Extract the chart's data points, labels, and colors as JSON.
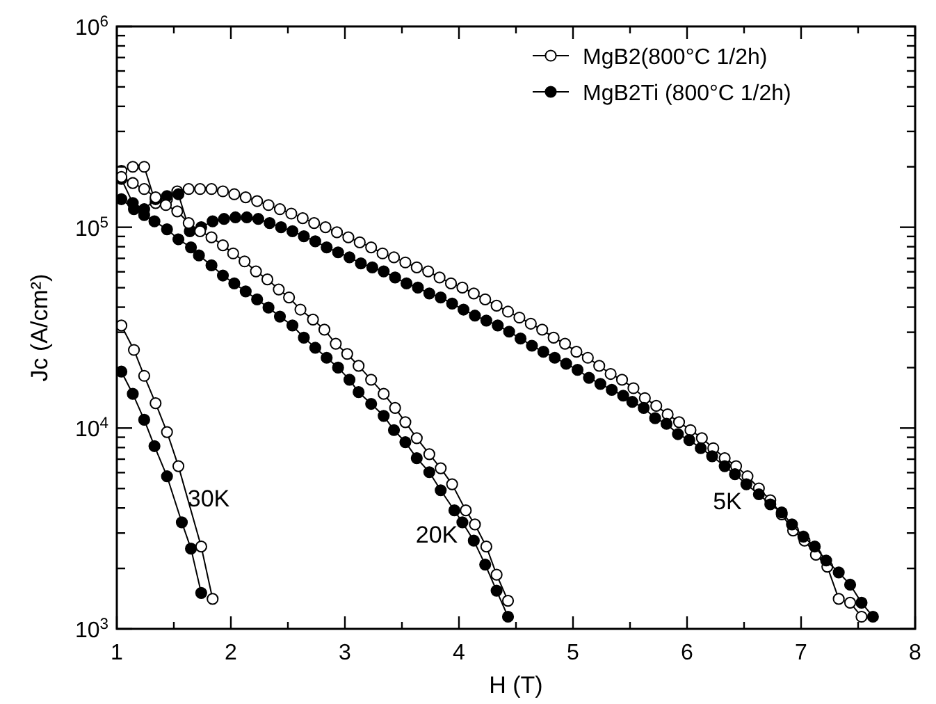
{
  "chart_data": {
    "type": "line",
    "xlabel": "H (T)",
    "ylabel": "Jc (A/cm²)",
    "log": "y",
    "marker": "circle",
    "line_style": "solid",
    "legend": "top right",
    "grid": false,
    "xlim": [
      1,
      8
    ],
    "xticks": [
      1,
      {
        "value": 1.5,
        "label": null
      },
      2,
      {
        "value": 2.5,
        "label": null
      },
      3,
      {
        "value": 3.5,
        "label": null
      },
      4,
      {
        "value": 4.5,
        "label": null
      },
      5,
      {
        "value": 5.5,
        "label": null
      },
      6,
      {
        "value": 6.5,
        "label": null
      },
      7,
      {
        "value": 7.5,
        "label": null
      },
      8
    ],
    "ylim": [
      1000,
      1000000
    ],
    "yticks": [
      {
        "value": 1000,
        "label": "10$^{3}$"
      },
      {
        "value": 2000,
        "label": null
      },
      {
        "value": 3000,
        "label": null
      },
      {
        "value": 4000,
        "label": null
      },
      {
        "value": 5000,
        "label": null
      },
      {
        "value": 6000,
        "label": null
      },
      {
        "value": 7000,
        "label": null
      },
      {
        "value": 8000,
        "label": null
      },
      {
        "value": 9000,
        "label": null
      },
      {
        "value": 10000,
        "label": "10$^{4}$"
      },
      {
        "value": 20000,
        "label": null
      },
      {
        "value": 30000,
        "label": null
      },
      {
        "value": 40000,
        "label": null
      },
      {
        "value": 50000,
        "label": null
      },
      {
        "value": 60000,
        "label": null
      },
      {
        "value": 70000,
        "label": null
      },
      {
        "value": 80000,
        "label": null
      },
      {
        "value": 90000,
        "label": null
      },
      {
        "value": 100000,
        "label": "10$^{5}$"
      },
      {
        "value": 200000,
        "label": null
      },
      {
        "value": 300000,
        "label": null
      },
      {
        "value": 400000,
        "label": null
      },
      {
        "value": 500000,
        "label": null
      },
      {
        "value": 600000,
        "label": null
      },
      {
        "value": 700000,
        "label": null
      },
      {
        "value": 800000,
        "label": null
      },
      {
        "value": 900000,
        "label": null
      },
      {
        "value": 1000000,
        "label": "10$^{6}$"
      }
    ],
    "annotations": [
      "30K",
      "20K",
      "5K"
    ],
    "series": [
      {
        "name": "MgB2(800°C 1/2h)",
        "color": "#000000",
        "marker": "circle-open",
        "x": [
          1.04,
          1.14,
          1.24,
          1.34,
          1.44,
          1.53,
          1.63,
          1.73,
          1.83,
          1.93,
          2.03,
          2.13,
          2.23,
          2.33,
          2.43,
          2.53,
          2.63,
          2.73,
          2.83,
          2.93,
          3.03,
          3.13,
          3.23,
          3.33,
          3.43,
          3.53,
          3.63,
          3.73,
          3.83,
          3.93,
          4.03,
          4.13,
          4.23,
          4.33,
          4.43,
          4.53,
          4.63,
          4.73,
          4.83,
          4.93,
          5.03,
          5.13,
          5.23,
          5.33,
          5.43,
          5.53,
          5.63,
          5.73,
          5.83,
          5.93,
          6.03,
          6.13,
          6.23,
          6.33,
          6.43,
          6.53,
          6.63,
          6.73,
          6.83,
          6.93,
          7.03,
          7.13,
          7.23,
          7.33,
          7.43,
          7.53
        ],
        "values": [
          191000,
          200000,
          200000,
          132000,
          138000,
          151000,
          155000,
          155000,
          155000,
          151000,
          146000,
          141000,
          135000,
          129000,
          123000,
          117000,
          111000,
          105000,
          100000,
          94400,
          89100,
          84100,
          79400,
          74100,
          70800,
          66800,
          63100,
          60300,
          56200,
          52500,
          50100,
          46800,
          43700,
          40700,
          38000,
          35500,
          33100,
          30900,
          28200,
          26300,
          24000,
          22400,
          20400,
          18600,
          17400,
          15800,
          14100,
          12900,
          11700,
          10700,
          9770,
          8910,
          7940,
          7080,
          6460,
          5750,
          5010,
          4370,
          3720,
          3090,
          2750,
          2340,
          2040,
          1410,
          1350,
          1150
        ]
      },
      {
        "name": "MgB2Ti (800°C 1/2h)",
        "color": "#000000",
        "x": [
          1.04,
          1.14,
          1.24,
          1.34,
          1.44,
          1.54,
          1.64,
          1.74,
          1.84,
          1.94,
          2.04,
          2.14,
          2.24,
          2.34,
          2.44,
          2.54,
          2.64,
          2.74,
          2.84,
          2.94,
          3.04,
          3.14,
          3.24,
          3.34,
          3.44,
          3.54,
          3.64,
          3.74,
          3.84,
          3.94,
          4.04,
          4.14,
          4.24,
          4.34,
          4.44,
          4.54,
          4.64,
          4.74,
          4.84,
          4.94,
          5.04,
          5.14,
          5.24,
          5.34,
          5.44,
          5.52,
          5.62,
          5.72,
          5.82,
          5.92,
          6.02,
          6.12,
          6.22,
          6.33,
          6.42,
          6.52,
          6.63,
          6.73,
          6.83,
          6.92,
          7.02,
          7.12,
          7.22,
          7.33,
          7.43,
          7.53,
          7.63
        ],
        "values": [
          174000,
          132000,
          123000,
          138000,
          143000,
          146000,
          95500,
          100000,
          107000,
          110000,
          112000,
          112000,
          110000,
          105000,
          100000,
          95500,
          90200,
          85100,
          79400,
          75000,
          70800,
          66100,
          63100,
          60300,
          56200,
          52500,
          50100,
          46800,
          44700,
          41700,
          38900,
          36300,
          34300,
          32400,
          30200,
          27900,
          25700,
          24000,
          22400,
          20900,
          19500,
          17800,
          16600,
          15500,
          14500,
          13500,
          12600,
          11200,
          10500,
          9330,
          8710,
          7940,
          7240,
          6460,
          5890,
          5250,
          4680,
          4170,
          3800,
          3310,
          2880,
          2570,
          2190,
          1910,
          1660,
          1350,
          1150
        ]
      },
      {
        "color": "#000000",
        "marker": "circle-open",
        "x": [
          1.04,
          1.14,
          1.24,
          1.34,
          1.43,
          1.53,
          1.63,
          1.73,
          1.83,
          1.93,
          2.02,
          2.12,
          2.22,
          2.32,
          2.42,
          2.51,
          2.61,
          2.72,
          2.82,
          2.92,
          3.02,
          3.12,
          3.23,
          3.34,
          3.44,
          3.53,
          3.63,
          3.74,
          3.84,
          3.94,
          4.06,
          4.14,
          4.24,
          4.33,
          4.43
        ],
        "values": [
          178000,
          166000,
          155000,
          141000,
          129000,
          120000,
          105000,
          95500,
          89100,
          81300,
          74100,
          67600,
          60300,
          55000,
          49000,
          44700,
          38900,
          34700,
          30900,
          26300,
          23400,
          20400,
          17400,
          14800,
          12600,
          10700,
          8910,
          7410,
          6310,
          5250,
          3890,
          3310,
          2570,
          1860,
          1380
        ]
      },
      {
        "color": "#000000",
        "x": [
          1.04,
          1.15,
          1.24,
          1.33,
          1.44,
          1.54,
          1.65,
          1.72,
          1.83,
          1.93,
          2.03,
          2.13,
          2.23,
          2.33,
          2.43,
          2.54,
          2.64,
          2.74,
          2.84,
          2.94,
          3.04,
          3.12,
          3.23,
          3.34,
          3.43,
          3.53,
          3.63,
          3.74,
          3.84,
          3.96,
          4.03,
          4.13,
          4.23,
          4.33,
          4.43
        ],
        "values": [
          138000,
          123000,
          115000,
          107000,
          97700,
          87100,
          79400,
          72400,
          64600,
          57500,
          52500,
          47900,
          43700,
          39800,
          35900,
          32400,
          28200,
          25100,
          22400,
          20000,
          17400,
          15100,
          13200,
          11500,
          9770,
          8510,
          7080,
          6030,
          4900,
          3890,
          3390,
          2750,
          2090,
          1550,
          1150
        ]
      },
      {
        "color": "#000000",
        "marker": "circle-open",
        "x": [
          1.04,
          1.15,
          1.24,
          1.34,
          1.44,
          1.54,
          1.74,
          1.84
        ],
        "values": [
          32400,
          24500,
          18200,
          13300,
          9550,
          6460,
          2570,
          1410
        ]
      },
      {
        "color": "#000000",
        "x": [
          1.04,
          1.14,
          1.24,
          1.33,
          1.44,
          1.57,
          1.65,
          1.74
        ],
        "values": [
          19100,
          14800,
          11000,
          8130,
          5750,
          3390,
          2510,
          1510
        ]
      }
    ]
  }
}
